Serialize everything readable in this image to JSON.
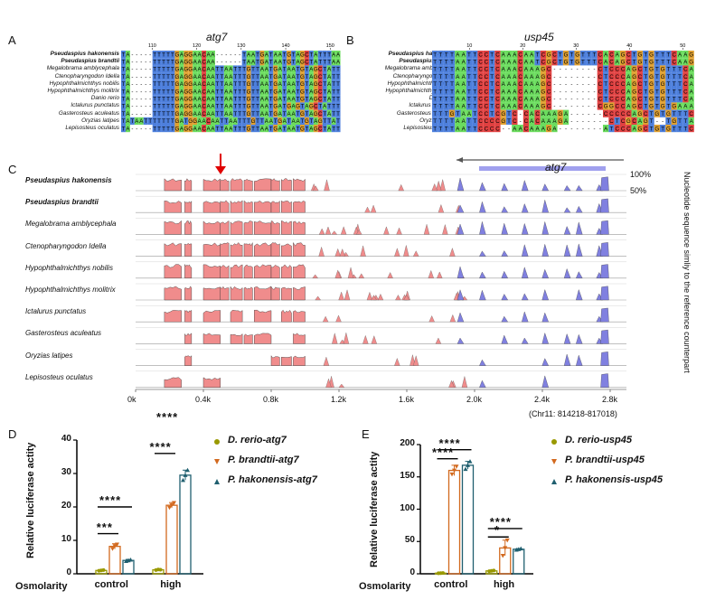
{
  "panels": {
    "A": "A",
    "B": "B",
    "C": "C",
    "D": "D",
    "E": "E"
  },
  "alignment_A": {
    "title": "atg7",
    "positions": [
      "110",
      "120",
      "130",
      "140",
      "150"
    ],
    "species": [
      {
        "name": "Pseudaspius hakonensis",
        "bold": true,
        "seq": "TA-----TTTTTGAGGAACAA------TAATGATAATGTAGCTATTTAA"
      },
      {
        "name": "Pseudaspius brandtii",
        "bold": true,
        "seq": "TA-----TTTTTGAGGAACAA------TAATGATAATGTAGCTATTTAA"
      },
      {
        "name": "Megalobrama amblycephala",
        "bold": false,
        "seq": "TA-----TTTTTGAGGAACAATTAATTTGTTAATGATAATGTAGCTATTTAA"
      },
      {
        "name": "Ctenopharyngodon Idella",
        "bold": false,
        "seq": "TA-----TTTTTGAGGAACAATTAATTTGTTAATGATAATGTAGCTATTTAA"
      },
      {
        "name": "Hypophthalmichthys nobilis",
        "bold": false,
        "seq": "TA-----TTTTTGAGGAACAATTAATTTGTTAATGATAATGTAGCTATTTAA"
      },
      {
        "name": "Hypophthalmichthys molitrix",
        "bold": false,
        "seq": "TA-----TTTTTGAGGAACAATTAATTTGTTAATGATAATGTAGCTATTTAA"
      },
      {
        "name": "Danio rerio",
        "bold": false,
        "seq": "TA-----TTTTTGAGGAACAATTAATTTGTTAATGATAATGTAGCTATTTAA"
      },
      {
        "name": "Ictalurus punctatus",
        "bold": false,
        "seq": "TA-----TTTTTGAGGAACAATTAATTTGTTAATGATGAGTAGCTATTTAA"
      },
      {
        "name": "Gasterosteus aculeatus",
        "bold": false,
        "seq": "TA-----TTTTTGAGGAACAATTAATTTGTTAATGATAATGTAGCTATTTAA"
      },
      {
        "name": "Oryzias latipes",
        "bold": false,
        "seq": "TATAATTTTTTTGATGGAACAATTAATTTGTTAATGATAATGTAGTTATTTAA"
      },
      {
        "name": "Lepisosteus oculatus",
        "bold": false,
        "seq": "TA-----TTTTTGAGGAACAATTAATTTGTTAATGATAATGTAGCTATTTAA"
      }
    ]
  },
  "alignment_B": {
    "title": "usp45",
    "positions": [
      "10",
      "20",
      "30",
      "40",
      "50"
    ],
    "species": [
      {
        "name": "Pseudaspius hakonensis",
        "bold": true,
        "seq": "TTTTAATTCCTCAAACAATCGCTGTGTTTCACAGCTGTGTTTCAAG"
      },
      {
        "name": "Pseudaspius brandtii",
        "bold": true,
        "seq": "TTTTAATTCCTCAAACAATCGCTGTGTTTCACAGCTGTGTTTCAAG"
      },
      {
        "name": "Megalobrama amblycephala",
        "bold": false,
        "seq": "TTTTAATTCCTCAAACAAAGC--------CTCCCAGCTGTGTTTCAAG"
      },
      {
        "name": "Ctenopharyngodon Idella",
        "bold": false,
        "seq": "TTTTAATTCCTCAAACAAAGC--------CTCCCAGCTGTGTTTCAAG"
      },
      {
        "name": "Hypophthalmichthys nobilis",
        "bold": false,
        "seq": "TTTTAATTCCTCAAACAAAGC--------CTCCCAGCTGTGTTTCAAG"
      },
      {
        "name": "Hypophthalmichthys molitrix",
        "bold": false,
        "seq": "TTTTAATTCCTCAAACAAAGC--------CTCCCAGCTGTGTTTCAAG"
      },
      {
        "name": "Danio rerio",
        "bold": false,
        "seq": "TTTTAATTCCTCAAACAAAGC--------CTCCCAGCTGTGTTTCAAG"
      },
      {
        "name": "Ictalurus punctatus",
        "bold": false,
        "seq": "TTTTAATTCCTCAAACAAAGC--------CGGCCAGCTGTGTGAAA"
      },
      {
        "name": "Gasterosteus aculeatus",
        "bold": false,
        "seq": "TTTGTAATCCTCGTC-CACAAAGA------CCCCCAGCTGTGTTTCAAG"
      },
      {
        "name": "Oryzias latipes",
        "bold": false,
        "seq": "TTTTAATTCCCCGTC-CACAAAGA-------CTCGCAGT--TGTTACAAG"
      },
      {
        "name": "Lepisosteus oculatus",
        "bold": false,
        "seq": "TTTTAATTCCCC--AACAAAGA--------ATCCCAGCTGTGTTTCAAG"
      }
    ]
  },
  "vista": {
    "gene_label": "atg7",
    "pct_top": "100%",
    "pct_mid": "50%",
    "side_label": "Nucleotide sequence simliy to the reference counterpart",
    "coord_label": "(Chr11: 814218-817018)",
    "x_ticks": [
      "0k",
      "0.4k",
      "0.8k",
      "1.2k",
      "1.6k",
      "2.0k",
      "2.4k",
      "2.8k"
    ],
    "species": [
      {
        "name": "Pseudaspius hakonensis",
        "bold": true
      },
      {
        "name": "Pseudaspius brandtii",
        "bold": true
      },
      {
        "name": "Megalobrama amblycephala",
        "bold": false
      },
      {
        "name": "Ctenopharyngodon Idella",
        "bold": false
      },
      {
        "name": "Hypophthalmichthys nobilis",
        "bold": false
      },
      {
        "name": "Hypophthalmichthys molitrix",
        "bold": false
      },
      {
        "name": "Ictalurus punctatus",
        "bold": false
      },
      {
        "name": "Gasterosteus aculeatus",
        "bold": false
      },
      {
        "name": "Oryzias latipes",
        "bold": false
      },
      {
        "name": "Lepisosteus oculatus",
        "bold": false
      }
    ],
    "colors": {
      "conserved_noncoding": "#f08c8c",
      "exon": "#8080e0",
      "gene_bar": "#a0a0ee",
      "arrow": "#e00000"
    }
  },
  "chart_data": [
    {
      "type": "bar",
      "panel": "D",
      "ylabel": "Relative luciferase actity",
      "xlabel": "Osmolarity",
      "categories": [
        "control",
        "high"
      ],
      "ylim": [
        0,
        40
      ],
      "yticks": [
        "0",
        "10",
        "20",
        "30",
        "40"
      ],
      "series": [
        {
          "name": "D. rerio-atg7",
          "color": "#999900",
          "marker": "circle",
          "values": [
            1.0,
            1.2
          ],
          "points": [
            [
              0.9,
              1.0,
              1.1
            ],
            [
              1.1,
              1.3,
              1.2
            ]
          ],
          "err": [
            0.2,
            0.2
          ]
        },
        {
          "name": "P. brandtii-atg7",
          "color": "#d2691e",
          "marker": "triangle-down",
          "values": [
            8.2,
            20.5
          ],
          "points": [
            [
              7.5,
              8.3,
              8.8
            ],
            [
              19.8,
              20.5,
              21.2
            ]
          ],
          "err": [
            0.8,
            0.8
          ]
        },
        {
          "name": "P. hakonensis-atg7",
          "color": "#1f5f6f",
          "marker": "triangle-up",
          "values": [
            4.0,
            29.5
          ],
          "points": [
            [
              3.8,
              4.0,
              4.2
            ],
            [
              28.0,
              29.5,
              31.0
            ]
          ],
          "err": [
            0.3,
            1.5
          ]
        }
      ],
      "significance": [
        {
          "label": "***"
        },
        {
          "label": "****"
        },
        {
          "label": "****"
        },
        {
          "label": "****"
        }
      ]
    },
    {
      "type": "bar",
      "panel": "E",
      "ylabel": "Relative luciferase actity",
      "xlabel": "Osmolarity",
      "categories": [
        "control",
        "high"
      ],
      "ylim": [
        0,
        200
      ],
      "yticks": [
        "0",
        "50",
        "100",
        "150",
        "200"
      ],
      "series": [
        {
          "name": "D. rerio-usp45",
          "color": "#999900",
          "marker": "circle",
          "values": [
            1.0,
            4.5
          ],
          "points": [
            [
              0.8,
              1.0,
              1.2
            ],
            [
              4.0,
              4.5,
              5.0
            ]
          ],
          "err": [
            0.2,
            0.6
          ]
        },
        {
          "name": "P. brandtii-usp45",
          "color": "#d2691e",
          "marker": "triangle-down",
          "values": [
            160,
            40
          ],
          "points": [
            [
              154,
              160,
              166
            ],
            [
              28,
              40,
              52
            ]
          ],
          "err": [
            8,
            12
          ]
        },
        {
          "name": "P. hakonensis-usp45",
          "color": "#1f5f6f",
          "marker": "triangle-up",
          "values": [
            168,
            38
          ],
          "points": [
            [
              162,
              168,
              174
            ],
            [
              37,
              38,
              39
            ]
          ],
          "err": [
            6,
            1
          ]
        }
      ],
      "significance": [
        {
          "label": "****"
        },
        {
          "label": "****"
        },
        {
          "label": "*"
        },
        {
          "label": "****"
        }
      ]
    }
  ]
}
